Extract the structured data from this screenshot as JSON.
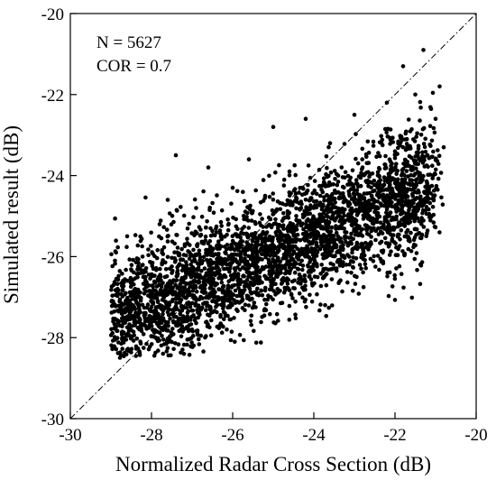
{
  "chart_data": {
    "type": "scatter",
    "title": "",
    "xlabel": "Normalized Radar Cross Section (dB)",
    "ylabel": "Simulated result (dB)",
    "xlim": [
      -30,
      -20
    ],
    "ylim": [
      -30,
      -20
    ],
    "xticks": [
      "-30",
      "-28",
      "-26",
      "-24",
      "-22",
      "-20"
    ],
    "yticks": [
      "-30",
      "-28",
      "-26",
      "-24",
      "-22",
      "-20"
    ],
    "grid": false,
    "legend": "none",
    "annotations": [
      "N = 5627",
      "COR = 0.7"
    ],
    "reference_line": {
      "style": "dash-dot",
      "from": [
        -30,
        -30
      ],
      "to": [
        -20,
        -20
      ]
    },
    "point_color": "#000000",
    "n_points": 5627,
    "correlation": 0.7,
    "x_range_observed": [
      -29.0,
      -20.8
    ],
    "y_range_observed": [
      -28.5,
      -20.8
    ],
    "series": [
      {
        "points": [
          [
            -28.9,
            -26.1
          ],
          [
            -28.8,
            -27.6
          ],
          [
            -28.6,
            -25.5
          ],
          [
            -28.4,
            -27.0
          ],
          [
            -28.2,
            -26.4
          ],
          [
            -28.0,
            -26.9
          ],
          [
            -27.8,
            -25.2
          ],
          [
            -27.6,
            -24.6
          ],
          [
            -27.4,
            -23.5
          ],
          [
            -27.4,
            -27.3
          ],
          [
            -27.2,
            -28.4
          ],
          [
            -27.0,
            -27.8
          ],
          [
            -26.9,
            -24.8
          ],
          [
            -26.6,
            -23.8
          ],
          [
            -26.4,
            -25.4
          ],
          [
            -26.2,
            -27.1
          ],
          [
            -26.0,
            -24.3
          ],
          [
            -25.8,
            -25.9
          ],
          [
            -25.6,
            -23.6
          ],
          [
            -25.4,
            -26.6
          ],
          [
            -25.2,
            -24.5
          ],
          [
            -25.0,
            -22.8
          ],
          [
            -24.8,
            -25.7
          ],
          [
            -24.6,
            -23.9
          ],
          [
            -24.4,
            -26.3
          ],
          [
            -24.2,
            -22.6
          ],
          [
            -24.0,
            -24.8
          ],
          [
            -23.8,
            -25.5
          ],
          [
            -23.6,
            -23.2
          ],
          [
            -23.4,
            -24.0
          ],
          [
            -23.2,
            -26.2
          ],
          [
            -23.0,
            -22.5
          ],
          [
            -22.8,
            -23.8
          ],
          [
            -22.5,
            -24.9
          ],
          [
            -22.3,
            -25.9
          ],
          [
            -22.2,
            -22.2
          ],
          [
            -22.0,
            -23.4
          ],
          [
            -21.8,
            -21.3
          ],
          [
            -21.7,
            -25.5
          ],
          [
            -21.5,
            -22.0
          ],
          [
            -21.3,
            -20.9
          ],
          [
            -21.2,
            -24.3
          ],
          [
            -21.0,
            -22.6
          ],
          [
            -20.9,
            -21.8
          ],
          [
            -20.8,
            -23.3
          ]
        ]
      }
    ]
  }
}
